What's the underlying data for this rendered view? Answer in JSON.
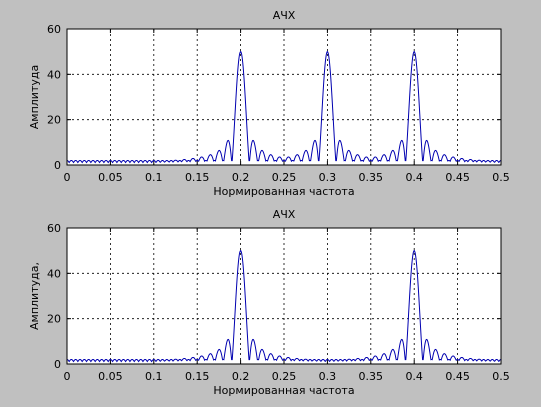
{
  "figure": {
    "background": "#c0c0c0",
    "line_color": "#0000b0"
  },
  "chart_data": [
    {
      "type": "line",
      "title": "АЧХ",
      "xlabel": "Нормированная частота",
      "ylabel": "Амплитуда",
      "xlim": [
        0,
        0.5
      ],
      "ylim": [
        0,
        60
      ],
      "xticks": [
        "0",
        "0.05",
        "0.1",
        "0.15",
        "0.2",
        "0.25",
        "0.3",
        "0.35",
        "0.4",
        "0.45",
        "0.5"
      ],
      "yticks": [
        "0",
        "20",
        "40",
        "60"
      ],
      "grid": true,
      "series": [
        {
          "peaks": [
            {
              "x": 0.2,
              "y": 50
            },
            {
              "x": 0.3,
              "y": 50
            },
            {
              "x": 0.4,
              "y": 50
            }
          ],
          "sidelobe_period": 0.01,
          "noise_floor": 2
        }
      ]
    },
    {
      "type": "line",
      "title": "АЧХ",
      "xlabel": "Нормированная частота",
      "ylabel": "Амплитуда,",
      "xlim": [
        0,
        0.5
      ],
      "ylim": [
        0,
        60
      ],
      "xticks": [
        "0",
        "0.05",
        "0.1",
        "0.15",
        "0.2",
        "0.25",
        "0.3",
        "0.35",
        "0.4",
        "0.45",
        "0.5"
      ],
      "yticks": [
        "0",
        "20",
        "40",
        "60"
      ],
      "grid": true,
      "series": [
        {
          "peaks": [
            {
              "x": 0.2,
              "y": 50
            },
            {
              "x": 0.4,
              "y": 50
            }
          ],
          "sidelobe_period": 0.01,
          "noise_floor": 2
        }
      ]
    }
  ]
}
